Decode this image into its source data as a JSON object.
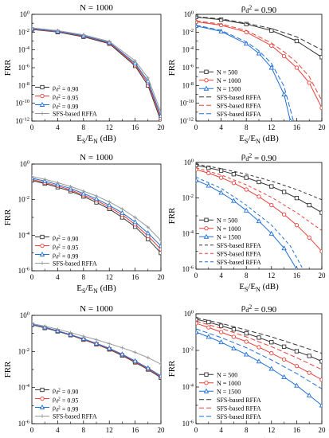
{
  "figure": {
    "background": "#ffffff"
  },
  "chart_data": [
    {
      "type": "line",
      "title": "N = 1000",
      "title_sup": "",
      "ylabel": "FRR",
      "xlabel": "E_S/E_N (dB)",
      "xlim": [
        0,
        20
      ],
      "ylim_exp": [
        -12,
        0
      ],
      "xticks": [
        "0",
        "4",
        "8",
        "12",
        "16",
        "20"
      ],
      "yticks": [
        "10^-12",
        "10^-10",
        "10^-8",
        "10^-6",
        "10^-4",
        "10^-2",
        "10^0"
      ],
      "legend_pos": "bottom-left",
      "series": [
        {
          "name": "ρ_d^2 = 0.90",
          "color": "#333333",
          "dash": "",
          "marker": "square",
          "x": [
            0,
            4,
            8,
            12,
            16,
            18,
            20
          ],
          "y": [
            0.02,
            0.01,
            0.003,
            0.0005,
            1.6e-06,
            1e-08,
            1e-12
          ]
        },
        {
          "name": "ρ_d^2 = 0.95",
          "color": "#e8413a",
          "dash": "",
          "marker": "circle",
          "x": [
            0,
            4,
            8,
            12,
            16,
            18,
            20
          ],
          "y": [
            0.022,
            0.011,
            0.0035,
            0.0006,
            2.3e-06,
            1.8e-08,
            2e-12
          ]
        },
        {
          "name": "ρ_d^2 = 0.99",
          "color": "#1f6fd6",
          "dash": "",
          "marker": "triangle",
          "x": [
            0,
            4,
            8,
            12,
            16,
            18,
            20
          ],
          "y": [
            0.025,
            0.012,
            0.004,
            0.0007,
            3.3e-06,
            3e-08,
            4e-12
          ]
        },
        {
          "name": "SFS-based RFFA",
          "color": "#9a9a9a",
          "dash": "",
          "marker": "plus",
          "x": [
            0,
            4,
            8,
            12,
            16,
            18,
            20
          ],
          "y": [
            0.03,
            0.015,
            0.005,
            0.0009,
            6e-06,
            7e-08,
            1e-11
          ]
        }
      ]
    },
    {
      "type": "line",
      "title": "ρ_d^2 = 0.90",
      "title_sup": "2",
      "ylabel": "FRR",
      "xlabel": "E_S/E_N (dB)",
      "xlim": [
        0,
        20
      ],
      "ylim_exp": [
        -12,
        0
      ],
      "xticks": [
        "0",
        "4",
        "8",
        "12",
        "16",
        "20"
      ],
      "yticks": [
        "10^-12",
        "10^-10",
        "10^-8",
        "10^-6",
        "10^-4",
        "10^-2",
        "10^0"
      ],
      "legend_pos": "bottom-left",
      "series": [
        {
          "name": "N =  500",
          "color": "#333333",
          "dash": "",
          "marker": "square",
          "x": [
            0,
            4,
            8,
            12,
            16,
            20
          ],
          "y": [
            0.5,
            0.25,
            0.08,
            0.015,
            0.001,
            1.5e-05
          ]
        },
        {
          "name": "N = 1000",
          "color": "#e8413a",
          "dash": "",
          "marker": "circle",
          "x": [
            0,
            4,
            8,
            12,
            14,
            16,
            18,
            20
          ],
          "y": [
            0.15,
            0.06,
            0.01,
            0.0003,
            2e-05,
            1e-06,
            2e-08,
            3e-11
          ]
        },
        {
          "name": "N = 1500",
          "color": "#1f6fd6",
          "dash": "",
          "marker": "triangle",
          "x": [
            0,
            4,
            8,
            10,
            12,
            14,
            15
          ],
          "y": [
            0.05,
            0.012,
            0.0005,
            4e-05,
            1e-06,
            1e-09,
            1e-12
          ]
        },
        {
          "name": "SFS-based RFFA",
          "color": "#333333",
          "dash": "6,3",
          "marker": "",
          "x": [
            0,
            4,
            8,
            12,
            16,
            20
          ],
          "y": [
            0.55,
            0.3,
            0.1,
            0.025,
            0.003,
            0.0001
          ]
        },
        {
          "name": "SFS-based RFFA",
          "color": "#e8413a",
          "dash": "6,3",
          "marker": "",
          "x": [
            0,
            4,
            8,
            12,
            14,
            16,
            18,
            20
          ],
          "y": [
            0.18,
            0.08,
            0.015,
            0.0006,
            6e-05,
            4e-06,
            1e-07,
            2e-10
          ]
        },
        {
          "name": "SFS-based RFFA",
          "color": "#1f6fd6",
          "dash": "6,3",
          "marker": "",
          "x": [
            0,
            4,
            8,
            10,
            12,
            14,
            15.5
          ],
          "y": [
            0.06,
            0.016,
            0.0008,
            8e-05,
            3e-06,
            8e-09,
            1e-12
          ]
        }
      ]
    },
    {
      "type": "line",
      "title": "N = 1000",
      "title_sup": "",
      "ylabel": "FRR",
      "xlabel": "E_S/E_N (dB)",
      "xlim": [
        0,
        20
      ],
      "ylim_exp": [
        -6,
        0
      ],
      "xticks": [
        "0",
        "4",
        "8",
        "12",
        "16",
        "20"
      ],
      "yticks": [
        "10^-6",
        "10^-4",
        "10^-2",
        "10^0"
      ],
      "legend_pos": "bottom-left",
      "series": [
        {
          "name": "ρ_d^2 = 0.90",
          "color": "#333333",
          "dash": "",
          "marker": "square",
          "x": [
            0,
            2,
            4,
            6,
            8,
            10,
            12,
            14,
            16,
            18,
            20
          ],
          "y": [
            0.12,
            0.08,
            0.05,
            0.03,
            0.015,
            0.007,
            0.003,
            0.001,
            0.0003,
            6e-05,
            1e-05
          ]
        },
        {
          "name": "ρ_d^2 = 0.95",
          "color": "#e8413a",
          "dash": "",
          "marker": "circle",
          "x": [
            0,
            2,
            4,
            6,
            8,
            10,
            12,
            14,
            16,
            18,
            20
          ],
          "y": [
            0.14,
            0.09,
            0.06,
            0.035,
            0.018,
            0.009,
            0.0038,
            0.0014,
            0.0004,
            9e-05,
            1.6e-05
          ]
        },
        {
          "name": "ρ_d^2 = 0.99",
          "color": "#1f6fd6",
          "dash": "",
          "marker": "triangle",
          "x": [
            0,
            2,
            4,
            6,
            8,
            10,
            12,
            14,
            16,
            18,
            20
          ],
          "y": [
            0.16,
            0.11,
            0.07,
            0.042,
            0.022,
            0.011,
            0.0048,
            0.0018,
            0.00055,
            0.00013,
            2.5e-05
          ]
        },
        {
          "name": "SFS-based RFFA",
          "color": "#9a9a9a",
          "dash": "",
          "marker": "plus",
          "x": [
            0,
            2,
            4,
            6,
            8,
            10,
            12,
            14,
            16,
            18,
            20
          ],
          "y": [
            0.2,
            0.14,
            0.09,
            0.055,
            0.03,
            0.016,
            0.0075,
            0.003,
            0.001,
            0.00028,
            5e-05
          ]
        }
      ]
    },
    {
      "type": "line",
      "title": "ρ_d^2 = 0.90",
      "title_sup": "2",
      "ylabel": "FRR",
      "xlabel": "E_S/E_N (dB)",
      "xlim": [
        0,
        20
      ],
      "ylim_exp": [
        -6,
        0
      ],
      "xticks": [
        "0",
        "4",
        "8",
        "12",
        "16",
        "20"
      ],
      "yticks": [
        "10^-6",
        "10^-4",
        "10^-2",
        "10^0"
      ],
      "legend_pos": "bottom-left",
      "series": [
        {
          "name": "N =  500",
          "color": "#333333",
          "dash": "",
          "marker": "square",
          "x": [
            0,
            2,
            4,
            6,
            8,
            10,
            12,
            14,
            16,
            18,
            20
          ],
          "y": [
            0.7,
            0.5,
            0.35,
            0.22,
            0.14,
            0.08,
            0.045,
            0.022,
            0.01,
            0.004,
            0.0015
          ]
        },
        {
          "name": "N = 1000",
          "color": "#e8413a",
          "dash": "",
          "marker": "circle",
          "x": [
            0,
            2,
            4,
            6,
            8,
            10,
            12,
            14,
            16,
            18,
            20
          ],
          "y": [
            0.4,
            0.25,
            0.14,
            0.07,
            0.03,
            0.012,
            0.004,
            0.0012,
            0.0003,
            6e-05,
            1e-05
          ]
        },
        {
          "name": "N = 1500",
          "color": "#1f6fd6",
          "dash": "",
          "marker": "triangle",
          "x": [
            0,
            2,
            4,
            6,
            8,
            10,
            12,
            14,
            16
          ],
          "y": [
            0.1,
            0.05,
            0.02,
            0.007,
            0.002,
            0.0005,
            0.0001,
            1.5e-05,
            1e-06
          ]
        },
        {
          "name": "SFS-based RFFA",
          "color": "#333333",
          "dash": "4,3",
          "marker": "",
          "x": [
            0,
            4,
            8,
            12,
            16,
            20
          ],
          "y": [
            0.8,
            0.45,
            0.22,
            0.09,
            0.03,
            0.008
          ]
        },
        {
          "name": "SFS-based RFFA",
          "color": "#e8413a",
          "dash": "4,3",
          "marker": "",
          "x": [
            0,
            4,
            8,
            12,
            16,
            20
          ],
          "y": [
            0.5,
            0.2,
            0.055,
            0.011,
            0.0015,
            0.00015
          ]
        },
        {
          "name": "SFS-based RFFA",
          "color": "#1f6fd6",
          "dash": "4,3",
          "marker": "",
          "x": [
            0,
            4,
            8,
            12,
            15,
            17
          ],
          "y": [
            0.15,
            0.035,
            0.004,
            0.0003,
            2e-05,
            1e-06
          ]
        }
      ]
    },
    {
      "type": "line",
      "title": "N = 1000",
      "title_sup": "",
      "ylabel": "FRR",
      "xlabel": "E_S/E_N (dB)",
      "xlim": [
        0,
        20
      ],
      "ylim_exp": [
        -6,
        0
      ],
      "xticks": [
        "0",
        "4",
        "8",
        "12",
        "16",
        "20"
      ],
      "yticks": [
        "10^-6",
        "10^-4",
        "10^-2",
        "10^0"
      ],
      "legend_pos": "bottom-left",
      "series": [
        {
          "name": "ρ_d^2 = 0.90",
          "color": "#333333",
          "dash": "",
          "marker": "square",
          "x": [
            0,
            2,
            4,
            6,
            8,
            10,
            12,
            14,
            16,
            18,
            20
          ],
          "y": [
            0.3,
            0.2,
            0.13,
            0.08,
            0.045,
            0.025,
            0.013,
            0.006,
            0.0025,
            0.001,
            0.00035
          ]
        },
        {
          "name": "ρ_d^2 = 0.95",
          "color": "#e8413a",
          "dash": "",
          "marker": "circle",
          "x": [
            0,
            2,
            4,
            6,
            8,
            10,
            12,
            14,
            16,
            18,
            20
          ],
          "y": [
            0.31,
            0.21,
            0.135,
            0.083,
            0.047,
            0.026,
            0.014,
            0.0065,
            0.0027,
            0.0011,
            0.0004
          ]
        },
        {
          "name": "ρ_d^2 = 0.99",
          "color": "#1f6fd6",
          "dash": "",
          "marker": "triangle",
          "x": [
            0,
            2,
            4,
            6,
            8,
            10,
            12,
            14,
            16,
            18,
            20
          ],
          "y": [
            0.32,
            0.22,
            0.14,
            0.086,
            0.05,
            0.028,
            0.015,
            0.007,
            0.003,
            0.0012,
            0.00045
          ]
        },
        {
          "name": "SFS-based RFFA",
          "color": "#9a9a9a",
          "dash": "",
          "marker": "plus",
          "x": [
            0,
            2,
            4,
            6,
            8,
            10,
            12,
            14,
            16,
            18,
            20
          ],
          "y": [
            0.35,
            0.25,
            0.17,
            0.11,
            0.07,
            0.045,
            0.027,
            0.016,
            0.009,
            0.0045,
            0.002
          ]
        }
      ]
    },
    {
      "type": "line",
      "title": "ρ_d^2 = 0.90",
      "title_sup": "2",
      "ylabel": "FRR",
      "xlabel": "E_S/E_N (dB)",
      "xlim": [
        0,
        20
      ],
      "ylim_exp": [
        -6,
        0
      ],
      "xticks": [
        "0",
        "4",
        "8",
        "12",
        "16",
        "20"
      ],
      "yticks": [
        "10^-6",
        "10^-4",
        "10^-2",
        "10^0"
      ],
      "legend_pos": "bottom-left",
      "series": [
        {
          "name": "N =  500",
          "color": "#333333",
          "dash": "",
          "marker": "square",
          "x": [
            0,
            2,
            4,
            6,
            8,
            10,
            12,
            14,
            16,
            18,
            20
          ],
          "y": [
            0.5,
            0.35,
            0.22,
            0.14,
            0.085,
            0.05,
            0.028,
            0.016,
            0.009,
            0.005,
            0.0025
          ]
        },
        {
          "name": "N = 1000",
          "color": "#e8413a",
          "dash": "",
          "marker": "circle",
          "x": [
            0,
            2,
            4,
            6,
            8,
            10,
            12,
            14,
            16,
            18,
            20
          ],
          "y": [
            0.3,
            0.18,
            0.1,
            0.055,
            0.03,
            0.015,
            0.007,
            0.0032,
            0.0014,
            0.0006,
            0.00025
          ]
        },
        {
          "name": "N = 1500",
          "color": "#1f6fd6",
          "dash": "",
          "marker": "triangle",
          "x": [
            0,
            2,
            4,
            6,
            8,
            10,
            12,
            14,
            16,
            18,
            20
          ],
          "y": [
            0.1,
            0.055,
            0.028,
            0.013,
            0.006,
            0.0025,
            0.001,
            0.00035,
            0.00012,
            3.5e-05,
            1e-05
          ]
        },
        {
          "name": "SFS-based RFFA",
          "color": "#333333",
          "dash": "6,3",
          "marker": "",
          "x": [
            0,
            4,
            8,
            12,
            16,
            20
          ],
          "y": [
            0.6,
            0.3,
            0.13,
            0.055,
            0.02,
            0.007
          ]
        },
        {
          "name": "SFS-based RFFA",
          "color": "#e8413a",
          "dash": "6,3",
          "marker": "",
          "x": [
            0,
            4,
            8,
            12,
            16,
            20
          ],
          "y": [
            0.4,
            0.16,
            0.055,
            0.016,
            0.004,
            0.0009
          ]
        },
        {
          "name": "SFS-based RFFA",
          "color": "#1f6fd6",
          "dash": "6,3",
          "marker": "",
          "x": [
            0,
            4,
            8,
            12,
            16,
            20
          ],
          "y": [
            0.15,
            0.05,
            0.014,
            0.003,
            0.00055,
            8e-05
          ]
        }
      ]
    }
  ]
}
